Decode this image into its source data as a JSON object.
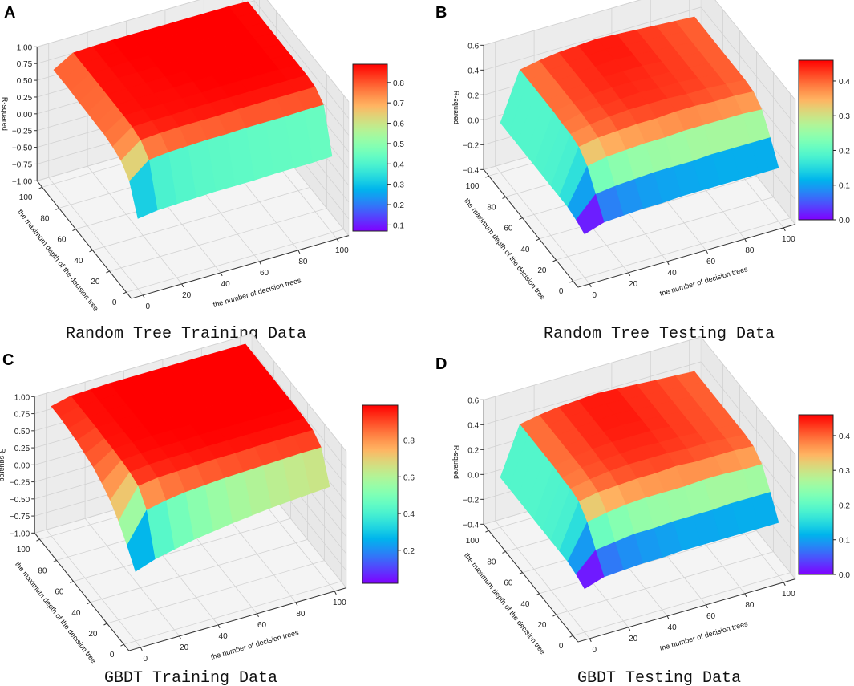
{
  "chart_data": [
    {
      "type": "surface3d",
      "panel_letter": "A",
      "title": "Random Tree Training Data",
      "xlabel": "the number of decision trees",
      "ylabel": "the maximum depth of the decision tree",
      "zlabel": "R-squared",
      "xlim": [
        0,
        100
      ],
      "ylim": [
        0,
        100
      ],
      "zlim": [
        -1.0,
        1.0
      ],
      "xticks": [
        "0",
        "20",
        "40",
        "60",
        "80",
        "100"
      ],
      "yticks": [
        "0",
        "20",
        "40",
        "60",
        "80",
        "100"
      ],
      "zticks": [
        "−1.00",
        "−0.75",
        "−0.50",
        "−0.25",
        "0.00",
        "0.25",
        "0.50",
        "0.75",
        "1.00"
      ],
      "zticks_values": [
        -1.0,
        -0.75,
        -0.5,
        -0.25,
        0,
        0.25,
        0.5,
        0.75,
        1.0
      ],
      "colormap": "rainbow",
      "colorbar": {
        "range": [
          0.07,
          0.89
        ],
        "ticks": [
          "0.1",
          "0.2",
          "0.3",
          "0.4",
          "0.5",
          "0.6",
          "0.7",
          "0.8"
        ],
        "ticks_values": [
          0.1,
          0.2,
          0.3,
          0.4,
          0.5,
          0.6,
          0.7,
          0.8
        ]
      },
      "grid": true,
      "x": [
        0,
        10,
        20,
        30,
        40,
        50,
        60,
        70,
        80,
        90,
        100
      ],
      "y": [
        0,
        10,
        20,
        30,
        40,
        50,
        60,
        70,
        80,
        90,
        100
      ],
      "z": [
        [
          0.05,
          0.09,
          0.1,
          0.11,
          0.12,
          0.12,
          0.12,
          0.13,
          0.13,
          0.13,
          0.14
        ],
        [
          0.45,
          0.68,
          0.71,
          0.72,
          0.73,
          0.73,
          0.74,
          0.74,
          0.74,
          0.75,
          0.75
        ],
        [
          0.6,
          0.82,
          0.84,
          0.85,
          0.85,
          0.85,
          0.86,
          0.86,
          0.86,
          0.86,
          0.86
        ],
        [
          0.65,
          0.86,
          0.87,
          0.87,
          0.88,
          0.88,
          0.88,
          0.88,
          0.88,
          0.88,
          0.88
        ],
        [
          0.68,
          0.87,
          0.88,
          0.88,
          0.88,
          0.88,
          0.89,
          0.89,
          0.89,
          0.89,
          0.88
        ],
        [
          0.68,
          0.87,
          0.88,
          0.88,
          0.88,
          0.89,
          0.89,
          0.89,
          0.89,
          0.89,
          0.88
        ],
        [
          0.69,
          0.87,
          0.88,
          0.88,
          0.89,
          0.89,
          0.89,
          0.89,
          0.89,
          0.89,
          0.88
        ],
        [
          0.69,
          0.87,
          0.88,
          0.88,
          0.89,
          0.89,
          0.89,
          0.89,
          0.89,
          0.89,
          0.88
        ],
        [
          0.7,
          0.87,
          0.88,
          0.89,
          0.89,
          0.89,
          0.89,
          0.89,
          0.89,
          0.89,
          0.88
        ],
        [
          0.7,
          0.87,
          0.88,
          0.89,
          0.89,
          0.89,
          0.89,
          0.89,
          0.89,
          0.89,
          0.88
        ],
        [
          0.7,
          0.87,
          0.88,
          0.89,
          0.89,
          0.89,
          0.89,
          0.89,
          0.89,
          0.89,
          0.88
        ]
      ]
    },
    {
      "type": "surface3d",
      "panel_letter": "B",
      "title": "Random Tree Testing Data",
      "xlabel": "the number of decision trees",
      "ylabel": "the maximum depth of the decision tree",
      "zlabel": "R-squared",
      "xlim": [
        0,
        100
      ],
      "ylim": [
        0,
        100
      ],
      "zlim": [
        -0.4,
        0.6
      ],
      "xticks": [
        "0",
        "20",
        "40",
        "60",
        "80",
        "100"
      ],
      "yticks": [
        "0",
        "20",
        "40",
        "60",
        "80",
        "100"
      ],
      "zticks": [
        "−0.4",
        "−0.2",
        "0.0",
        "0.2",
        "0.4",
        "0.6"
      ],
      "zticks_values": [
        -0.4,
        -0.2,
        0,
        0.2,
        0.4,
        0.6
      ],
      "colormap": "rainbow",
      "colorbar": {
        "range": [
          0.0,
          0.46
        ],
        "ticks": [
          "0.0",
          "0.1",
          "0.2",
          "0.3",
          "0.4"
        ],
        "ticks_values": [
          0,
          0.1,
          0.2,
          0.3,
          0.4
        ]
      },
      "grid": true,
      "x": [
        0,
        10,
        20,
        30,
        40,
        50,
        60,
        70,
        80,
        90,
        100
      ],
      "y": [
        0,
        10,
        20,
        30,
        40,
        50,
        60,
        70,
        80,
        90,
        100
      ],
      "z": [
        [
          -0.05,
          0.0,
          0.01,
          0.02,
          0.02,
          0.03,
          0.03,
          0.03,
          0.03,
          0.03,
          0.03
        ],
        [
          -0.02,
          0.14,
          0.16,
          0.17,
          0.18,
          0.18,
          0.18,
          0.19,
          0.19,
          0.19,
          0.19
        ],
        [
          0.0,
          0.28,
          0.31,
          0.32,
          0.33,
          0.33,
          0.34,
          0.34,
          0.34,
          0.34,
          0.33
        ],
        [
          0.0,
          0.35,
          0.38,
          0.39,
          0.4,
          0.4,
          0.41,
          0.41,
          0.4,
          0.4,
          0.39
        ],
        [
          0.0,
          0.37,
          0.4,
          0.42,
          0.43,
          0.43,
          0.43,
          0.42,
          0.42,
          0.41,
          0.4
        ],
        [
          0.0,
          0.37,
          0.41,
          0.42,
          0.43,
          0.44,
          0.43,
          0.43,
          0.42,
          0.41,
          0.4
        ],
        [
          0.0,
          0.38,
          0.41,
          0.43,
          0.44,
          0.44,
          0.43,
          0.43,
          0.42,
          0.41,
          0.4
        ],
        [
          0.0,
          0.38,
          0.41,
          0.43,
          0.44,
          0.44,
          0.44,
          0.43,
          0.42,
          0.41,
          0.4
        ],
        [
          0.0,
          0.38,
          0.41,
          0.43,
          0.44,
          0.45,
          0.44,
          0.43,
          0.42,
          0.41,
          0.4
        ],
        [
          0.0,
          0.38,
          0.41,
          0.43,
          0.44,
          0.45,
          0.44,
          0.43,
          0.42,
          0.41,
          0.4
        ],
        [
          0.0,
          0.38,
          0.41,
          0.43,
          0.44,
          0.45,
          0.44,
          0.43,
          0.42,
          0.41,
          0.4
        ]
      ]
    },
    {
      "type": "surface3d",
      "panel_letter": "C",
      "title": "GBDT Training Data",
      "xlabel": "the number of decision trees",
      "ylabel": "the maximum depth of the decision tree",
      "zlabel": "R-squared",
      "xlim": [
        0,
        100
      ],
      "ylim": [
        0,
        100
      ],
      "zlim": [
        -1.0,
        1.0
      ],
      "xticks": [
        "0",
        "20",
        "40",
        "60",
        "80",
        "100"
      ],
      "yticks": [
        "0",
        "20",
        "40",
        "60",
        "80",
        "100"
      ],
      "zticks": [
        "−1.00",
        "−0.75",
        "−0.50",
        "−0.25",
        "0.00",
        "0.25",
        "0.50",
        "0.75",
        "1.00"
      ],
      "zticks_values": [
        -1.0,
        -0.75,
        -0.5,
        -0.25,
        0,
        0.25,
        0.5,
        0.75,
        1.0
      ],
      "colormap": "rainbow",
      "colorbar": {
        "range": [
          0.02,
          0.99
        ],
        "ticks": [
          "0.2",
          "0.4",
          "0.6",
          "0.8"
        ],
        "ticks_values": [
          0.2,
          0.4,
          0.6,
          0.8
        ]
      },
      "grid": true,
      "x": [
        0,
        10,
        20,
        30,
        40,
        50,
        60,
        70,
        80,
        90,
        100
      ],
      "y": [
        0,
        10,
        20,
        30,
        40,
        50,
        60,
        70,
        80,
        90,
        100
      ],
      "z": [
        [
          0.02,
          0.12,
          0.18,
          0.24,
          0.28,
          0.32,
          0.35,
          0.38,
          0.4,
          0.42,
          0.44
        ],
        [
          0.25,
          0.68,
          0.74,
          0.78,
          0.8,
          0.82,
          0.83,
          0.84,
          0.85,
          0.86,
          0.86
        ],
        [
          0.45,
          0.88,
          0.92,
          0.93,
          0.94,
          0.95,
          0.95,
          0.96,
          0.96,
          0.96,
          0.96
        ],
        [
          0.6,
          0.93,
          0.96,
          0.97,
          0.97,
          0.98,
          0.98,
          0.98,
          0.98,
          0.98,
          0.98
        ],
        [
          0.7,
          0.95,
          0.97,
          0.98,
          0.98,
          0.99,
          0.99,
          0.99,
          0.99,
          0.99,
          0.99
        ],
        [
          0.78,
          0.96,
          0.98,
          0.99,
          0.99,
          0.99,
          0.99,
          0.99,
          0.99,
          0.99,
          0.99
        ],
        [
          0.82,
          0.96,
          0.98,
          0.99,
          0.99,
          0.99,
          0.99,
          0.99,
          0.99,
          0.99,
          0.99
        ],
        [
          0.86,
          0.97,
          0.98,
          0.99,
          0.99,
          0.99,
          0.99,
          0.99,
          0.99,
          0.99,
          0.99
        ],
        [
          0.88,
          0.97,
          0.98,
          0.99,
          0.99,
          0.99,
          0.99,
          0.99,
          0.99,
          0.99,
          0.99
        ],
        [
          0.9,
          0.97,
          0.98,
          0.99,
          0.99,
          0.99,
          0.99,
          0.99,
          0.99,
          0.99,
          0.99
        ],
        [
          0.9,
          0.97,
          0.98,
          0.99,
          0.99,
          0.99,
          0.99,
          0.99,
          0.99,
          0.99,
          0.99
        ]
      ]
    },
    {
      "type": "surface3d",
      "panel_letter": "D",
      "title": "GBDT Testing Data",
      "xlabel": "the number of decision trees",
      "ylabel": "the maximum depth of the decision tree",
      "zlabel": "R-squared",
      "xlim": [
        0,
        100
      ],
      "ylim": [
        0,
        100
      ],
      "zlim": [
        -0.4,
        0.6
      ],
      "xticks": [
        "0",
        "20",
        "40",
        "60",
        "80",
        "100"
      ],
      "yticks": [
        "0",
        "20",
        "40",
        "60",
        "80",
        "100"
      ],
      "zticks": [
        "−0.4",
        "−0.2",
        "0.0",
        "0.2",
        "0.4",
        "0.6"
      ],
      "zticks_values": [
        -0.4,
        -0.2,
        0,
        0.2,
        0.4,
        0.6
      ],
      "colormap": "rainbow",
      "colorbar": {
        "range": [
          0.0,
          0.46
        ],
        "ticks": [
          "0.0",
          "0.1",
          "0.2",
          "0.3",
          "0.4"
        ],
        "ticks_values": [
          0,
          0.1,
          0.2,
          0.3,
          0.4
        ]
      },
      "grid": true,
      "x": [
        0,
        10,
        20,
        30,
        40,
        50,
        60,
        70,
        80,
        90,
        100
      ],
      "y": [
        0,
        10,
        20,
        30,
        40,
        50,
        60,
        70,
        80,
        90,
        100
      ],
      "z": [
        [
          -0.05,
          0.0,
          0.01,
          0.02,
          0.02,
          0.03,
          0.03,
          0.03,
          0.03,
          0.03,
          0.03
        ],
        [
          -0.02,
          0.13,
          0.15,
          0.17,
          0.17,
          0.18,
          0.18,
          0.18,
          0.19,
          0.19,
          0.19
        ],
        [
          0.0,
          0.27,
          0.3,
          0.32,
          0.33,
          0.33,
          0.33,
          0.34,
          0.34,
          0.33,
          0.33
        ],
        [
          0.0,
          0.35,
          0.38,
          0.39,
          0.4,
          0.4,
          0.41,
          0.4,
          0.4,
          0.4,
          0.39
        ],
        [
          0.0,
          0.37,
          0.4,
          0.42,
          0.43,
          0.43,
          0.43,
          0.42,
          0.42,
          0.41,
          0.4
        ],
        [
          0.0,
          0.37,
          0.41,
          0.42,
          0.43,
          0.44,
          0.43,
          0.43,
          0.42,
          0.41,
          0.4
        ],
        [
          0.0,
          0.38,
          0.41,
          0.43,
          0.44,
          0.44,
          0.44,
          0.43,
          0.42,
          0.41,
          0.4
        ],
        [
          0.0,
          0.38,
          0.41,
          0.43,
          0.44,
          0.45,
          0.44,
          0.43,
          0.42,
          0.41,
          0.4
        ],
        [
          0.0,
          0.38,
          0.41,
          0.43,
          0.44,
          0.45,
          0.44,
          0.43,
          0.42,
          0.41,
          0.4
        ],
        [
          0.0,
          0.38,
          0.41,
          0.43,
          0.44,
          0.45,
          0.44,
          0.43,
          0.42,
          0.41,
          0.4
        ],
        [
          0.0,
          0.38,
          0.41,
          0.43,
          0.44,
          0.45,
          0.44,
          0.43,
          0.42,
          0.41,
          0.4
        ]
      ]
    }
  ]
}
